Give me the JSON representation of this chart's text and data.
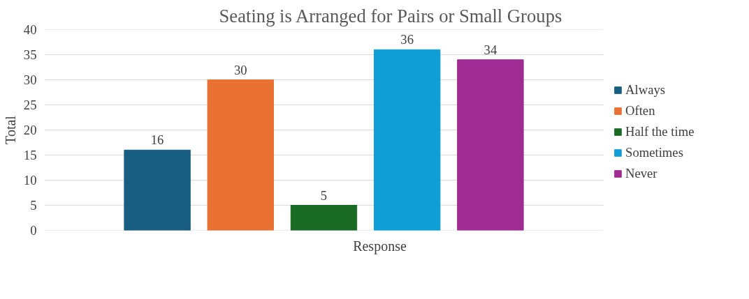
{
  "chart_data": {
    "type": "bar",
    "title": "Seating is Arranged for Pairs or Small Groups",
    "xlabel": "Response",
    "ylabel": "Total",
    "categories": [
      null
    ],
    "series": [
      {
        "name": "Always",
        "color": "#175e82",
        "values": [
          16
        ]
      },
      {
        "name": "Often",
        "color": "#e97132",
        "values": [
          30
        ]
      },
      {
        "name": "Half the time",
        "color": "#196b24",
        "values": [
          5
        ]
      },
      {
        "name": "Sometimes",
        "color": "#0f9ed5",
        "values": [
          36
        ]
      },
      {
        "name": "Never",
        "color": "#a02b93",
        "values": [
          34
        ]
      }
    ],
    "ylim": [
      0,
      40
    ],
    "yticks": [
      0,
      5,
      10,
      15,
      20,
      25,
      30,
      35,
      40
    ],
    "grid": "y",
    "legend": "right",
    "data_labels": true
  }
}
